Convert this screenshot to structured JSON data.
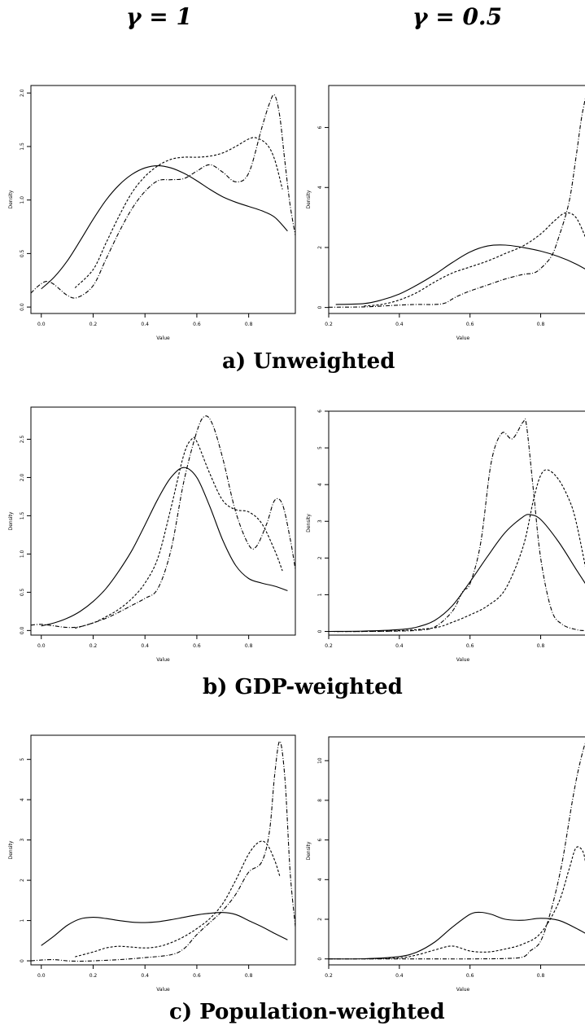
{
  "columns": {
    "left": "γ = 1",
    "right": "γ = 0.5"
  },
  "rows": [
    {
      "caption": "a) Unweighted"
    },
    {
      "caption": "b) GDP-weighted"
    },
    {
      "caption": "c) Population-weighted"
    }
  ],
  "chart_data": [
    {
      "type": "line",
      "id": "a-left",
      "xlabel": "Value",
      "ylabel": "Density",
      "xlim": [
        -0.04,
        0.98
      ],
      "ylim": [
        -0.06,
        2.07
      ],
      "xticks": [
        "0.0",
        "0.2",
        "0.4",
        "0.6",
        "0.8"
      ],
      "yticks": [
        "0.0",
        "0.5",
        "1.0",
        "1.5",
        "2.0"
      ],
      "series": [
        {
          "style": "solid",
          "x": [
            0.0,
            0.05,
            0.1,
            0.15,
            0.2,
            0.25,
            0.3,
            0.35,
            0.4,
            0.45,
            0.5,
            0.55,
            0.6,
            0.65,
            0.7,
            0.75,
            0.8,
            0.85,
            0.9,
            0.95
          ],
          "y": [
            0.17,
            0.28,
            0.43,
            0.62,
            0.82,
            1.0,
            1.14,
            1.24,
            1.3,
            1.32,
            1.3,
            1.25,
            1.18,
            1.1,
            1.03,
            0.98,
            0.94,
            0.9,
            0.84,
            0.71
          ]
        },
        {
          "style": "dashed",
          "x": [
            0.13,
            0.2,
            0.25,
            0.3,
            0.35,
            0.4,
            0.45,
            0.5,
            0.55,
            0.6,
            0.65,
            0.7,
            0.75,
            0.8,
            0.83,
            0.87,
            0.9,
            0.93
          ],
          "y": [
            0.18,
            0.35,
            0.6,
            0.85,
            1.07,
            1.22,
            1.32,
            1.38,
            1.4,
            1.4,
            1.41,
            1.44,
            1.5,
            1.57,
            1.58,
            1.52,
            1.38,
            1.1
          ]
        },
        {
          "style": "dashdot",
          "x": [
            -0.04,
            -0.01,
            0.02,
            0.05,
            0.1,
            0.14,
            0.2,
            0.25,
            0.3,
            0.35,
            0.4,
            0.45,
            0.5,
            0.55,
            0.6,
            0.65,
            0.7,
            0.75,
            0.8,
            0.85,
            0.88,
            0.9,
            0.92,
            0.94,
            0.96,
            0.98
          ],
          "y": [
            0.13,
            0.2,
            0.24,
            0.21,
            0.11,
            0.09,
            0.2,
            0.45,
            0.7,
            0.92,
            1.08,
            1.18,
            1.19,
            1.2,
            1.27,
            1.33,
            1.26,
            1.17,
            1.25,
            1.67,
            1.9,
            1.98,
            1.78,
            1.35,
            0.95,
            0.67
          ]
        }
      ]
    },
    {
      "type": "line",
      "id": "a-right",
      "xlabel": "Value",
      "ylabel": "Density",
      "xlim": [
        0.2,
        0.96
      ],
      "ylim": [
        -0.2,
        7.4
      ],
      "xticks": [
        "0.2",
        "0.4",
        "0.6",
        "0.8"
      ],
      "yticks": [
        "0",
        "2",
        "4",
        "6"
      ],
      "series": [
        {
          "style": "solid",
          "x": [
            0.22,
            0.3,
            0.35,
            0.4,
            0.45,
            0.5,
            0.55,
            0.6,
            0.65,
            0.7,
            0.75,
            0.8,
            0.85,
            0.9,
            0.95
          ],
          "y": [
            0.1,
            0.13,
            0.25,
            0.45,
            0.75,
            1.1,
            1.5,
            1.85,
            2.05,
            2.08,
            2.0,
            1.88,
            1.7,
            1.45,
            1.12
          ]
        },
        {
          "style": "dashed",
          "x": [
            0.3,
            0.35,
            0.4,
            0.45,
            0.5,
            0.55,
            0.6,
            0.65,
            0.7,
            0.75,
            0.8,
            0.84,
            0.87,
            0.9,
            0.93
          ],
          "y": [
            0.05,
            0.1,
            0.25,
            0.5,
            0.85,
            1.15,
            1.35,
            1.55,
            1.8,
            2.05,
            2.45,
            2.9,
            3.15,
            3.0,
            2.25
          ]
        },
        {
          "style": "dashdot",
          "x": [
            0.2,
            0.3,
            0.4,
            0.45,
            0.5,
            0.53,
            0.56,
            0.6,
            0.65,
            0.7,
            0.75,
            0.78,
            0.8,
            0.83,
            0.85,
            0.88,
            0.9,
            0.92,
            0.94,
            0.96
          ],
          "y": [
            0.01,
            0.02,
            0.08,
            0.1,
            0.1,
            0.15,
            0.35,
            0.55,
            0.75,
            0.95,
            1.1,
            1.15,
            1.3,
            1.7,
            2.3,
            3.5,
            5.0,
            6.6,
            7.2,
            5.0
          ]
        }
      ]
    },
    {
      "type": "line",
      "id": "b-left",
      "xlabel": "Value",
      "ylabel": "Density",
      "xlim": [
        -0.04,
        0.98
      ],
      "ylim": [
        -0.06,
        2.92
      ],
      "xticks": [
        "0.0",
        "0.2",
        "0.4",
        "0.6",
        "0.8"
      ],
      "yticks": [
        "0.0",
        "0.5",
        "1.0",
        "1.5",
        "2.0",
        "2.5"
      ],
      "series": [
        {
          "style": "solid",
          "x": [
            0.0,
            0.05,
            0.1,
            0.15,
            0.2,
            0.25,
            0.3,
            0.35,
            0.4,
            0.45,
            0.5,
            0.55,
            0.6,
            0.65,
            0.7,
            0.75,
            0.8,
            0.85,
            0.9,
            0.95
          ],
          "y": [
            0.06,
            0.1,
            0.16,
            0.25,
            0.38,
            0.55,
            0.78,
            1.05,
            1.38,
            1.72,
            2.0,
            2.13,
            2.0,
            1.62,
            1.18,
            0.85,
            0.68,
            0.62,
            0.58,
            0.52
          ]
        },
        {
          "style": "dashed",
          "x": [
            0.13,
            0.2,
            0.25,
            0.3,
            0.35,
            0.4,
            0.45,
            0.5,
            0.55,
            0.58,
            0.6,
            0.65,
            0.7,
            0.75,
            0.8,
            0.85,
            0.9,
            0.93
          ],
          "y": [
            0.03,
            0.1,
            0.18,
            0.28,
            0.42,
            0.62,
            0.95,
            1.6,
            2.3,
            2.5,
            2.47,
            2.05,
            1.7,
            1.58,
            1.55,
            1.4,
            1.05,
            0.78
          ]
        },
        {
          "style": "dashdot",
          "x": [
            -0.04,
            0.0,
            0.05,
            0.1,
            0.15,
            0.2,
            0.25,
            0.3,
            0.35,
            0.4,
            0.45,
            0.5,
            0.55,
            0.6,
            0.63,
            0.66,
            0.7,
            0.75,
            0.8,
            0.83,
            0.87,
            0.9,
            0.93,
            0.96,
            0.98
          ],
          "y": [
            0.07,
            0.08,
            0.06,
            0.04,
            0.05,
            0.1,
            0.16,
            0.24,
            0.33,
            0.42,
            0.55,
            1.05,
            1.95,
            2.6,
            2.8,
            2.7,
            2.25,
            1.55,
            1.12,
            1.1,
            1.4,
            1.7,
            1.65,
            1.2,
            0.8
          ]
        }
      ]
    },
    {
      "type": "line",
      "id": "b-right",
      "xlabel": "Value",
      "ylabel": "Density",
      "xlim": [
        0.2,
        0.96
      ],
      "ylim": [
        -0.1,
        6.0
      ],
      "xticks": [
        "0.2",
        "0.4",
        "0.6",
        "0.8"
      ],
      "yticks": [
        "0",
        "1",
        "2",
        "3",
        "4",
        "5",
        "6"
      ],
      "series": [
        {
          "style": "solid",
          "x": [
            0.2,
            0.3,
            0.4,
            0.45,
            0.5,
            0.55,
            0.6,
            0.65,
            0.7,
            0.75,
            0.77,
            0.8,
            0.85,
            0.9,
            0.95
          ],
          "y": [
            0.0,
            0.01,
            0.05,
            0.12,
            0.3,
            0.7,
            1.35,
            2.05,
            2.7,
            3.12,
            3.18,
            3.05,
            2.45,
            1.7,
            0.95
          ]
        },
        {
          "style": "dashed",
          "x": [
            0.2,
            0.3,
            0.4,
            0.5,
            0.55,
            0.6,
            0.65,
            0.7,
            0.75,
            0.78,
            0.8,
            0.82,
            0.85,
            0.88,
            0.9,
            0.93
          ],
          "y": [
            0.0,
            0.0,
            0.02,
            0.1,
            0.25,
            0.45,
            0.7,
            1.15,
            2.3,
            3.6,
            4.25,
            4.4,
            4.15,
            3.6,
            3.0,
            1.6
          ]
        },
        {
          "style": "dashdot",
          "x": [
            0.2,
            0.3,
            0.4,
            0.45,
            0.5,
            0.55,
            0.58,
            0.6,
            0.63,
            0.66,
            0.69,
            0.72,
            0.75,
            0.76,
            0.78,
            0.8,
            0.83,
            0.86,
            0.9,
            0.93,
            0.96
          ],
          "y": [
            0.0,
            0.0,
            0.01,
            0.03,
            0.12,
            0.55,
            1.1,
            1.3,
            2.4,
            4.6,
            5.4,
            5.25,
            5.7,
            5.6,
            3.8,
            2.0,
            0.6,
            0.2,
            0.05,
            0.02,
            0.01
          ]
        }
      ]
    },
    {
      "type": "line",
      "id": "c-left",
      "xlabel": "Value",
      "ylabel": "Density",
      "xlim": [
        -0.04,
        0.98
      ],
      "ylim": [
        -0.1,
        5.6
      ],
      "xticks": [
        "0.0",
        "0.2",
        "0.4",
        "0.6",
        "0.8"
      ],
      "yticks": [
        "0",
        "1",
        "2",
        "3",
        "4",
        "5"
      ],
      "series": [
        {
          "style": "solid",
          "x": [
            0.0,
            0.05,
            0.1,
            0.15,
            0.2,
            0.25,
            0.3,
            0.35,
            0.4,
            0.45,
            0.5,
            0.55,
            0.6,
            0.65,
            0.7,
            0.75,
            0.8,
            0.85,
            0.9,
            0.95
          ],
          "y": [
            0.38,
            0.62,
            0.88,
            1.04,
            1.08,
            1.05,
            1.0,
            0.96,
            0.95,
            0.97,
            1.02,
            1.08,
            1.14,
            1.18,
            1.2,
            1.15,
            1.0,
            0.85,
            0.68,
            0.52
          ]
        },
        {
          "style": "dashed",
          "x": [
            0.13,
            0.2,
            0.25,
            0.3,
            0.35,
            0.4,
            0.45,
            0.5,
            0.55,
            0.6,
            0.65,
            0.7,
            0.75,
            0.8,
            0.84,
            0.87,
            0.9,
            0.92
          ],
          "y": [
            0.1,
            0.22,
            0.32,
            0.36,
            0.34,
            0.32,
            0.35,
            0.45,
            0.6,
            0.8,
            1.05,
            1.42,
            2.0,
            2.65,
            2.95,
            2.9,
            2.5,
            2.1
          ]
        },
        {
          "style": "dashdot",
          "x": [
            -0.04,
            0.0,
            0.05,
            0.1,
            0.15,
            0.2,
            0.3,
            0.4,
            0.5,
            0.55,
            0.6,
            0.65,
            0.7,
            0.75,
            0.8,
            0.85,
            0.88,
            0.9,
            0.92,
            0.94,
            0.96,
            0.98
          ],
          "y": [
            0.0,
            0.02,
            0.03,
            0.0,
            -0.01,
            0.0,
            0.03,
            0.08,
            0.15,
            0.3,
            0.65,
            0.95,
            1.25,
            1.65,
            2.2,
            2.45,
            3.2,
            4.6,
            5.45,
            4.5,
            2.2,
            0.85
          ]
        }
      ]
    },
    {
      "type": "line",
      "id": "c-right",
      "xlabel": "Value",
      "ylabel": "Density",
      "xlim": [
        0.2,
        0.96
      ],
      "ylim": [
        -0.3,
        11.2
      ],
      "xticks": [
        "0.2",
        "0.4",
        "0.6",
        "0.8"
      ],
      "yticks": [
        "0",
        "2",
        "4",
        "6",
        "8",
        "10"
      ],
      "series": [
        {
          "style": "solid",
          "x": [
            0.2,
            0.3,
            0.4,
            0.45,
            0.5,
            0.55,
            0.6,
            0.63,
            0.66,
            0.7,
            0.75,
            0.8,
            0.85,
            0.9,
            0.95
          ],
          "y": [
            0.0,
            0.01,
            0.12,
            0.35,
            0.85,
            1.6,
            2.25,
            2.35,
            2.25,
            2.0,
            1.95,
            2.05,
            1.95,
            1.55,
            1.05
          ]
        },
        {
          "style": "dashed",
          "x": [
            0.3,
            0.4,
            0.45,
            0.5,
            0.55,
            0.6,
            0.65,
            0.7,
            0.75,
            0.8,
            0.85,
            0.88,
            0.9,
            0.92,
            0.93
          ],
          "y": [
            0.0,
            0.05,
            0.2,
            0.45,
            0.65,
            0.4,
            0.35,
            0.5,
            0.75,
            1.3,
            2.8,
            4.5,
            5.6,
            5.4,
            4.5
          ]
        },
        {
          "style": "dashdot",
          "x": [
            0.2,
            0.4,
            0.5,
            0.6,
            0.7,
            0.75,
            0.77,
            0.8,
            0.83,
            0.86,
            0.89,
            0.91,
            0.93,
            0.94,
            0.95,
            0.96
          ],
          "y": [
            0.0,
            0.0,
            0.0,
            0.0,
            0.02,
            0.1,
            0.4,
            0.9,
            2.5,
            4.8,
            8.0,
            9.8,
            11.0,
            10.2,
            8.0,
            6.4
          ]
        }
      ]
    }
  ]
}
